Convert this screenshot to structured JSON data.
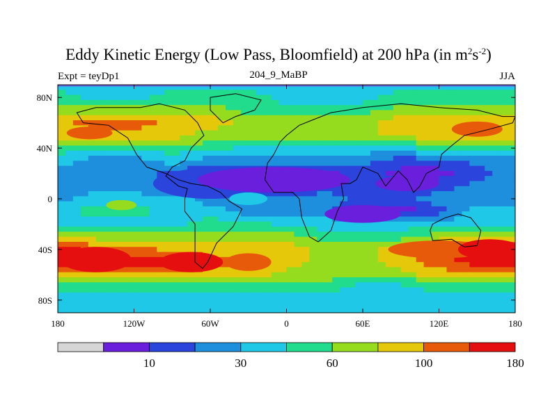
{
  "header": {
    "title_main": "Eddy Kinetic Energy (Low Pass, Bloomfield) at 200 hPa (in m",
    "title_sup1": "2",
    "title_mid": "s",
    "title_sup2": "-2",
    "title_end": ")",
    "left_label": "Expt = teyDp1",
    "center_label": "204_9_MaBP",
    "right_label": "JJA"
  },
  "colors": {
    "c0": "#d6d6d6",
    "c1": "#6a1fdc",
    "c2": "#2a44dc",
    "c3": "#1e8fdc",
    "c4": "#1ec8e6",
    "c5": "#20dc8c",
    "c6": "#96dc1e",
    "c7": "#e6c80a",
    "c8": "#e65a0a",
    "c9": "#e60f0f",
    "frame": "#000000",
    "top_line": "#6464dc"
  },
  "chart_data": {
    "type": "heatmap",
    "title": "Eddy Kinetic Energy (Low Pass, Bloomfield) at 200 hPa (in m2s-2)",
    "subtitle_left": "Expt = teyDp1",
    "subtitle_center": "204_9_MaBP",
    "subtitle_right": "JJA",
    "xlim": [
      -180,
      180
    ],
    "ylim": [
      -90,
      90
    ],
    "x_ticks": [
      {
        "value": -180,
        "label": "180"
      },
      {
        "value": -120,
        "label": "120W"
      },
      {
        "value": -60,
        "label": "60W"
      },
      {
        "value": 0,
        "label": "0"
      },
      {
        "value": 60,
        "label": "60E"
      },
      {
        "value": 120,
        "label": "120E"
      },
      {
        "value": 180,
        "label": "180"
      }
    ],
    "y_ticks": [
      {
        "value": 80,
        "label": "80N"
      },
      {
        "value": 40,
        "label": "40N"
      },
      {
        "value": 0,
        "label": "0"
      },
      {
        "value": -40,
        "label": "40S"
      },
      {
        "value": -80,
        "label": "80S"
      }
    ],
    "colorbar": {
      "levels": [
        5,
        10,
        20,
        30,
        45,
        60,
        80,
        100,
        140,
        180
      ],
      "labels": [
        {
          "index": 1,
          "label": "10"
        },
        {
          "index": 3,
          "label": "30"
        },
        {
          "index": 5,
          "label": "60"
        },
        {
          "index": 7,
          "label": "100"
        },
        {
          "index": 9,
          "label": "180"
        }
      ]
    },
    "field": {
      "lats": [
        90,
        80,
        70,
        60,
        50,
        40,
        30,
        20,
        10,
        0,
        -10,
        -20,
        -30,
        -40,
        -50,
        -60,
        -70,
        -80,
        -90
      ],
      "lons": [
        -180,
        -150,
        -120,
        -90,
        -60,
        -30,
        0,
        30,
        60,
        90,
        120,
        150,
        180
      ],
      "values": [
        [
          4,
          4,
          4,
          4,
          4,
          4,
          4,
          4,
          4,
          4,
          4,
          4,
          4
        ],
        [
          5,
          4,
          4,
          5,
          5,
          5,
          4,
          4,
          4,
          5,
          5,
          5,
          5
        ],
        [
          6,
          6,
          6,
          6,
          6,
          5,
          5,
          5,
          5,
          6,
          6,
          6,
          6
        ],
        [
          7,
          8,
          8,
          7,
          7,
          6,
          6,
          6,
          6,
          7,
          7,
          7,
          7
        ],
        [
          7,
          7,
          7,
          7,
          6,
          6,
          6,
          6,
          6,
          7,
          7,
          7,
          7
        ],
        [
          5,
          5,
          5,
          5,
          5,
          4,
          4,
          4,
          4,
          4,
          5,
          5,
          5
        ],
        [
          4,
          3,
          3,
          4,
          3,
          3,
          3,
          3,
          3,
          2,
          2,
          3,
          3
        ],
        [
          3,
          3,
          3,
          2,
          1,
          1,
          1,
          1,
          2,
          1,
          1,
          2,
          3
        ],
        [
          3,
          3,
          3,
          2,
          1,
          1,
          1,
          2,
          2,
          2,
          2,
          3,
          3
        ],
        [
          3,
          4,
          4,
          4,
          3,
          3,
          3,
          3,
          2,
          2,
          3,
          3,
          3
        ],
        [
          4,
          5,
          5,
          4,
          4,
          3,
          3,
          3,
          1,
          1,
          2,
          4,
          4
        ],
        [
          4,
          4,
          4,
          4,
          5,
          5,
          4,
          4,
          4,
          4,
          4,
          4,
          4
        ],
        [
          7,
          6,
          6,
          6,
          6,
          6,
          6,
          5,
          5,
          5,
          6,
          7,
          7
        ],
        [
          9,
          8,
          8,
          7,
          7,
          7,
          7,
          6,
          6,
          7,
          8,
          9,
          9
        ],
        [
          9,
          9,
          9,
          9,
          8,
          8,
          7,
          6,
          6,
          7,
          8,
          9,
          9
        ],
        [
          7,
          7,
          7,
          7,
          7,
          7,
          6,
          6,
          6,
          6,
          7,
          7,
          7
        ],
        [
          5,
          5,
          5,
          5,
          5,
          5,
          5,
          5,
          4,
          4,
          5,
          5,
          5
        ],
        [
          4,
          4,
          4,
          4,
          4,
          4,
          4,
          4,
          4,
          4,
          4,
          4,
          4
        ],
        [
          4,
          4,
          4,
          4,
          4,
          4,
          4,
          4,
          4,
          4,
          4,
          4,
          4
        ]
      ]
    },
    "blobs": [
      {
        "lon": -155,
        "lat": 52,
        "rx": 18,
        "ry": 5,
        "level": 8
      },
      {
        "lon": -150,
        "lat": -48,
        "rx": 28,
        "ry": 10,
        "level": 9
      },
      {
        "lon": -75,
        "lat": -50,
        "rx": 25,
        "ry": 8,
        "level": 9
      },
      {
        "lon": -30,
        "lat": -50,
        "rx": 18,
        "ry": 7,
        "level": 8
      },
      {
        "lon": 120,
        "lat": -40,
        "rx": 40,
        "ry": 7,
        "level": 8
      },
      {
        "lon": 160,
        "lat": -40,
        "rx": 25,
        "ry": 8,
        "level": 9
      },
      {
        "lon": 150,
        "lat": 55,
        "rx": 20,
        "ry": 6,
        "level": 8
      },
      {
        "lon": -130,
        "lat": -5,
        "rx": 12,
        "ry": 4,
        "level": 6
      },
      {
        "lon": -60,
        "lat": 12,
        "rx": 45,
        "ry": 12,
        "level": 2
      },
      {
        "lon": -10,
        "lat": 15,
        "rx": 60,
        "ry": 10,
        "level": 1
      },
      {
        "lon": 60,
        "lat": -12,
        "rx": 30,
        "ry": 7,
        "level": 1
      },
      {
        "lon": 95,
        "lat": 12,
        "rx": 25,
        "ry": 6,
        "level": 1
      },
      {
        "lon": -30,
        "lat": 0,
        "rx": 15,
        "ry": 5,
        "level": 4
      }
    ]
  }
}
